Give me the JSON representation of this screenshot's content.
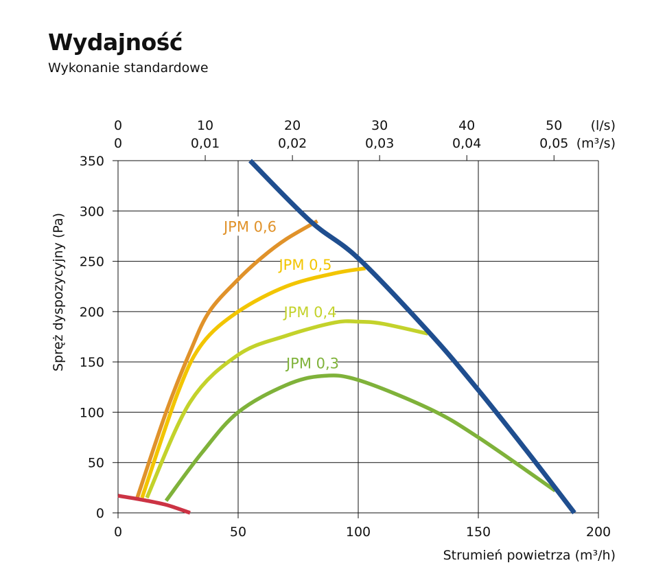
{
  "title": "Wydajność",
  "subtitle": "Wykonanie standardowe",
  "chart_data": {
    "type": "line",
    "xlabel": "Strumień powietrza (m³/h)",
    "ylabel": "Spręż dyspozycyjny (Pa)",
    "xlim": [
      0,
      200
    ],
    "ylim": [
      0,
      350
    ],
    "x_ticks": [
      "0",
      "50",
      "100",
      "150",
      "200"
    ],
    "y_ticks": [
      "0",
      "50",
      "100",
      "150",
      "200",
      "250",
      "300",
      "350"
    ],
    "grid": true,
    "top_axis": {
      "ticks_ls": [
        "0",
        "10",
        "20",
        "30",
        "40",
        "50"
      ],
      "ticks_m3s": [
        "0",
        "0,01",
        "0,02",
        "0,03",
        "0,04",
        "0,05"
      ],
      "unit_ls": "(l/s)",
      "unit_m3s": "(m³/s)"
    },
    "series": [
      {
        "name": "",
        "color": "#1f4e8f",
        "points": [
          [
            55,
            350
          ],
          [
            80,
            290
          ],
          [
            100,
            253
          ],
          [
            130,
            178
          ],
          [
            150,
            122
          ],
          [
            170,
            62
          ],
          [
            190,
            0
          ]
        ]
      },
      {
        "name": "JPM 0,6",
        "color": "#e0922a",
        "points": [
          [
            8,
            15
          ],
          [
            20,
            100
          ],
          [
            30,
            160
          ],
          [
            38,
            200
          ],
          [
            50,
            232
          ],
          [
            60,
            254
          ],
          [
            70,
            272
          ],
          [
            83,
            290
          ]
        ]
      },
      {
        "name": "JPM 0,5",
        "color": "#f2c500",
        "points": [
          [
            10,
            15
          ],
          [
            25,
            120
          ],
          [
            35,
            168
          ],
          [
            50,
            200
          ],
          [
            70,
            225
          ],
          [
            90,
            238
          ],
          [
            103,
            243
          ]
        ]
      },
      {
        "name": "JPM 0,4",
        "color": "#c3d22b",
        "points": [
          [
            12,
            15
          ],
          [
            30,
            110
          ],
          [
            50,
            157
          ],
          [
            70,
            176
          ],
          [
            90,
            189
          ],
          [
            100,
            190
          ],
          [
            110,
            188
          ],
          [
            129,
            178
          ]
        ]
      },
      {
        "name": "JPM 0,3",
        "color": "#7fb23a",
        "points": [
          [
            20,
            12
          ],
          [
            35,
            60
          ],
          [
            50,
            100
          ],
          [
            70,
            127
          ],
          [
            85,
            136
          ],
          [
            100,
            132
          ],
          [
            130,
            103
          ],
          [
            150,
            75
          ],
          [
            182,
            22
          ]
        ]
      },
      {
        "name": "",
        "color": "#cc3344",
        "points": [
          [
            0,
            17
          ],
          [
            10,
            13
          ],
          [
            20,
            8
          ],
          [
            30,
            0
          ]
        ]
      }
    ],
    "labels": [
      {
        "text": "JPM 0,6",
        "at": [
          55,
          285
        ],
        "color": "#e0922a"
      },
      {
        "text": "JPM 0,5",
        "at": [
          78,
          247
        ],
        "color": "#f2c500"
      },
      {
        "text": "JPM 0,4",
        "at": [
          80,
          200
        ],
        "color": "#c3d22b"
      },
      {
        "text": "JPM 0,3",
        "at": [
          81,
          149
        ],
        "color": "#7fb23a"
      }
    ]
  }
}
